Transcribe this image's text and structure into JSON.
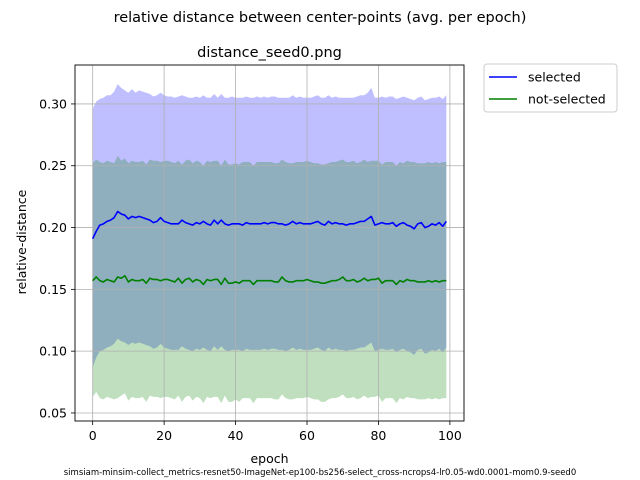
{
  "figure": {
    "suptitle": "relative distance between center-points (avg. per epoch)",
    "footer": "simsiam-minsim-collect_metrics-resnet50-ImageNet-ep100-bs256-select_cross-ncrops4-lr0.05-wd0.0001-mom0.9-seed0"
  },
  "chart_data": {
    "type": "line",
    "title": "distance_seed0.png",
    "xlabel": "epoch",
    "ylabel": "relative-distance",
    "xlim": [
      -4.95,
      103.95
    ],
    "ylim": [
      0.0435,
      0.3315
    ],
    "xticks": [
      0,
      20,
      40,
      60,
      80,
      100
    ],
    "yticks": [
      0.05,
      0.1,
      0.15,
      0.2,
      0.25,
      0.3
    ],
    "xtick_labels": [
      "0",
      "20",
      "40",
      "60",
      "80",
      "100"
    ],
    "ytick_labels": [
      "0.05",
      "0.10",
      "0.15",
      "0.20",
      "0.25",
      "0.30"
    ],
    "grid": true,
    "legend_position": "outside-upper-right",
    "series": [
      {
        "name": "selected",
        "color": "#0000ff",
        "band_color": "#0000ff",
        "mean": [
          0.191,
          0.197,
          0.202,
          0.203,
          0.205,
          0.206,
          0.208,
          0.213,
          0.211,
          0.21,
          0.207,
          0.209,
          0.208,
          0.209,
          0.208,
          0.207,
          0.206,
          0.204,
          0.205,
          0.208,
          0.205,
          0.204,
          0.203,
          0.203,
          0.203,
          0.206,
          0.204,
          0.203,
          0.202,
          0.204,
          0.203,
          0.205,
          0.203,
          0.202,
          0.206,
          0.203,
          0.206,
          0.203,
          0.202,
          0.203,
          0.203,
          0.203,
          0.202,
          0.204,
          0.203,
          0.203,
          0.203,
          0.203,
          0.204,
          0.203,
          0.204,
          0.204,
          0.203,
          0.203,
          0.202,
          0.203,
          0.205,
          0.203,
          0.204,
          0.203,
          0.203,
          0.203,
          0.204,
          0.205,
          0.203,
          0.202,
          0.205,
          0.203,
          0.204,
          0.203,
          0.203,
          0.202,
          0.203,
          0.203,
          0.204,
          0.205,
          0.205,
          0.207,
          0.209,
          0.202,
          0.203,
          0.204,
          0.203,
          0.203,
          0.204,
          0.201,
          0.203,
          0.204,
          0.202,
          0.201,
          0.199,
          0.203,
          0.204,
          0.2,
          0.201,
          0.203,
          0.202,
          0.204,
          0.201,
          0.205
        ],
        "upper": [
          0.296,
          0.302,
          0.304,
          0.305,
          0.307,
          0.307,
          0.31,
          0.316,
          0.313,
          0.311,
          0.309,
          0.312,
          0.309,
          0.311,
          0.31,
          0.309,
          0.308,
          0.306,
          0.307,
          0.309,
          0.307,
          0.306,
          0.306,
          0.305,
          0.306,
          0.307,
          0.306,
          0.305,
          0.305,
          0.306,
          0.305,
          0.307,
          0.305,
          0.305,
          0.308,
          0.305,
          0.308,
          0.305,
          0.305,
          0.306,
          0.305,
          0.305,
          0.305,
          0.306,
          0.305,
          0.305,
          0.306,
          0.305,
          0.306,
          0.305,
          0.306,
          0.306,
          0.305,
          0.305,
          0.305,
          0.305,
          0.307,
          0.305,
          0.306,
          0.305,
          0.305,
          0.305,
          0.306,
          0.307,
          0.305,
          0.305,
          0.307,
          0.305,
          0.306,
          0.305,
          0.305,
          0.305,
          0.305,
          0.305,
          0.306,
          0.307,
          0.307,
          0.309,
          0.313,
          0.305,
          0.305,
          0.306,
          0.305,
          0.306,
          0.306,
          0.304,
          0.305,
          0.306,
          0.305,
          0.304,
          0.303,
          0.305,
          0.306,
          0.303,
          0.304,
          0.305,
          0.305,
          0.306,
          0.304,
          0.307
        ],
        "lower": [
          0.087,
          0.095,
          0.1,
          0.101,
          0.103,
          0.104,
          0.106,
          0.11,
          0.108,
          0.107,
          0.105,
          0.107,
          0.106,
          0.107,
          0.106,
          0.105,
          0.104,
          0.102,
          0.103,
          0.106,
          0.103,
          0.102,
          0.101,
          0.101,
          0.101,
          0.104,
          0.102,
          0.101,
          0.1,
          0.102,
          0.101,
          0.103,
          0.101,
          0.1,
          0.104,
          0.101,
          0.104,
          0.101,
          0.1,
          0.101,
          0.101,
          0.101,
          0.1,
          0.102,
          0.101,
          0.101,
          0.101,
          0.101,
          0.102,
          0.101,
          0.102,
          0.102,
          0.101,
          0.101,
          0.1,
          0.101,
          0.103,
          0.101,
          0.102,
          0.101,
          0.101,
          0.101,
          0.102,
          0.103,
          0.101,
          0.1,
          0.103,
          0.101,
          0.102,
          0.101,
          0.101,
          0.1,
          0.101,
          0.101,
          0.102,
          0.103,
          0.103,
          0.105,
          0.107,
          0.1,
          0.101,
          0.102,
          0.101,
          0.101,
          0.102,
          0.099,
          0.101,
          0.102,
          0.1,
          0.099,
          0.097,
          0.101,
          0.102,
          0.098,
          0.099,
          0.101,
          0.1,
          0.102,
          0.099,
          0.103
        ]
      },
      {
        "name": "not-selected",
        "color": "#008000",
        "band_color": "#008000",
        "mean": [
          0.157,
          0.16,
          0.157,
          0.156,
          0.158,
          0.157,
          0.156,
          0.16,
          0.159,
          0.161,
          0.156,
          0.158,
          0.157,
          0.157,
          0.158,
          0.155,
          0.159,
          0.158,
          0.158,
          0.157,
          0.158,
          0.158,
          0.157,
          0.156,
          0.159,
          0.155,
          0.158,
          0.159,
          0.156,
          0.158,
          0.157,
          0.154,
          0.158,
          0.157,
          0.158,
          0.158,
          0.154,
          0.159,
          0.155,
          0.155,
          0.156,
          0.155,
          0.157,
          0.157,
          0.157,
          0.154,
          0.157,
          0.157,
          0.157,
          0.157,
          0.157,
          0.156,
          0.156,
          0.16,
          0.157,
          0.156,
          0.156,
          0.157,
          0.157,
          0.157,
          0.158,
          0.157,
          0.156,
          0.156,
          0.155,
          0.155,
          0.156,
          0.157,
          0.157,
          0.158,
          0.16,
          0.157,
          0.157,
          0.158,
          0.156,
          0.157,
          0.159,
          0.157,
          0.158,
          0.158,
          0.159,
          0.155,
          0.157,
          0.157,
          0.157,
          0.154,
          0.157,
          0.156,
          0.158,
          0.157,
          0.157,
          0.156,
          0.156,
          0.156,
          0.157,
          0.156,
          0.157,
          0.156,
          0.157,
          0.157
        ],
        "upper": [
          0.252,
          0.255,
          0.253,
          0.252,
          0.254,
          0.253,
          0.252,
          0.258,
          0.254,
          0.256,
          0.252,
          0.254,
          0.253,
          0.253,
          0.254,
          0.251,
          0.255,
          0.254,
          0.254,
          0.253,
          0.254,
          0.254,
          0.253,
          0.252,
          0.254,
          0.251,
          0.254,
          0.255,
          0.252,
          0.254,
          0.253,
          0.25,
          0.254,
          0.253,
          0.254,
          0.254,
          0.25,
          0.255,
          0.251,
          0.251,
          0.252,
          0.251,
          0.253,
          0.253,
          0.253,
          0.25,
          0.253,
          0.253,
          0.253,
          0.253,
          0.253,
          0.252,
          0.252,
          0.255,
          0.253,
          0.252,
          0.252,
          0.253,
          0.253,
          0.253,
          0.254,
          0.253,
          0.252,
          0.252,
          0.251,
          0.251,
          0.252,
          0.253,
          0.253,
          0.254,
          0.255,
          0.253,
          0.253,
          0.254,
          0.252,
          0.253,
          0.255,
          0.253,
          0.254,
          0.254,
          0.254,
          0.251,
          0.253,
          0.253,
          0.253,
          0.25,
          0.253,
          0.252,
          0.254,
          0.253,
          0.253,
          0.252,
          0.252,
          0.252,
          0.253,
          0.252,
          0.253,
          0.252,
          0.253,
          0.253
        ],
        "lower": [
          0.063,
          0.067,
          0.062,
          0.061,
          0.063,
          0.062,
          0.061,
          0.062,
          0.064,
          0.066,
          0.06,
          0.063,
          0.062,
          0.062,
          0.063,
          0.059,
          0.064,
          0.063,
          0.063,
          0.062,
          0.063,
          0.063,
          0.062,
          0.061,
          0.064,
          0.059,
          0.063,
          0.064,
          0.06,
          0.063,
          0.062,
          0.058,
          0.063,
          0.062,
          0.063,
          0.063,
          0.058,
          0.064,
          0.059,
          0.059,
          0.061,
          0.059,
          0.062,
          0.062,
          0.062,
          0.058,
          0.062,
          0.062,
          0.062,
          0.062,
          0.062,
          0.061,
          0.061,
          0.065,
          0.062,
          0.061,
          0.061,
          0.062,
          0.062,
          0.062,
          0.063,
          0.062,
          0.061,
          0.061,
          0.059,
          0.059,
          0.061,
          0.062,
          0.062,
          0.063,
          0.065,
          0.062,
          0.062,
          0.063,
          0.061,
          0.062,
          0.064,
          0.062,
          0.063,
          0.063,
          0.064,
          0.059,
          0.062,
          0.062,
          0.062,
          0.058,
          0.062,
          0.061,
          0.063,
          0.062,
          0.062,
          0.061,
          0.061,
          0.061,
          0.062,
          0.061,
          0.062,
          0.061,
          0.062,
          0.062
        ]
      }
    ]
  }
}
